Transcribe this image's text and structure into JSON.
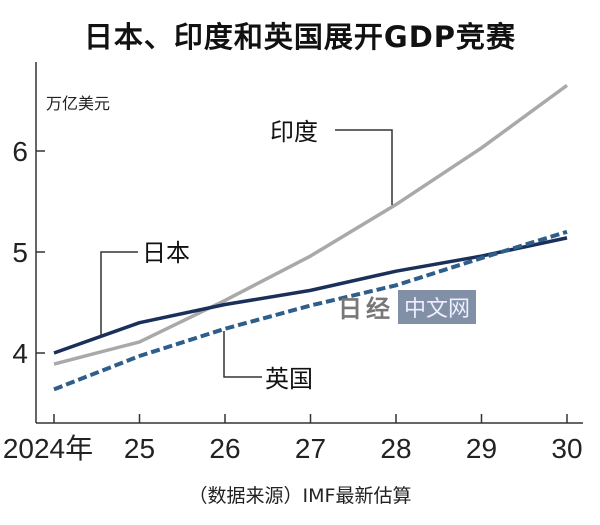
{
  "chart_data": {
    "type": "line",
    "title": "日本、印度和英国展开GDP竞赛",
    "ylabel": "万亿美元",
    "xlabel": "",
    "source": "（数据来源）IMF最新估算",
    "x": [
      2024,
      2025,
      2026,
      2027,
      2028,
      2029,
      2030
    ],
    "x_tick_labels": [
      "2024年",
      "25",
      "26",
      "27",
      "28",
      "29",
      "30"
    ],
    "y_ticks": [
      4,
      5,
      6
    ],
    "y_tick_labels": [
      "4",
      "5",
      "6"
    ],
    "ylim": [
      3.3,
      6.9
    ],
    "grid": false,
    "series": [
      {
        "name": "印度",
        "color": "#a9a9a9",
        "style": "solid",
        "values": [
          3.89,
          4.11,
          4.52,
          4.96,
          5.47,
          6.03,
          6.65
        ]
      },
      {
        "name": "日本",
        "color": "#1a2f5a",
        "style": "solid",
        "values": [
          4.0,
          4.3,
          4.48,
          4.62,
          4.81,
          4.96,
          5.14
        ]
      },
      {
        "name": "英国",
        "color": "#2e5e8a",
        "style": "dashed",
        "values": [
          3.64,
          3.97,
          4.24,
          4.47,
          4.67,
          4.94,
          5.2
        ]
      }
    ],
    "watermark": {
      "logo": "日经",
      "text": "中文网"
    }
  }
}
